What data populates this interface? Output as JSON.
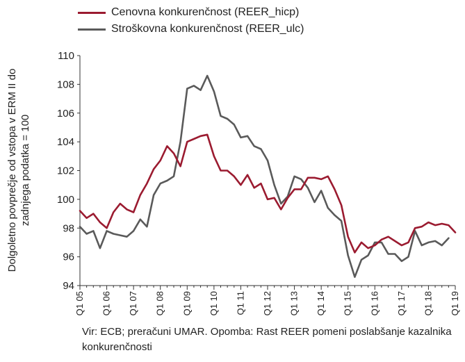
{
  "chart_data": {
    "type": "line",
    "ylabel": "Dolgoletno povprečje od vstopa v ERM II do zadnjega podatka = 100",
    "xlabel": "",
    "ylim": [
      94,
      110
    ],
    "yticks": [
      94,
      96,
      98,
      100,
      102,
      104,
      106,
      108,
      110
    ],
    "xticks": [
      "Q1 05",
      "Q1 06",
      "Q1 07",
      "Q1 08",
      "Q1 09",
      "Q1 10",
      "Q1 11",
      "Q1 12",
      "Q1 13",
      "Q1 14",
      "Q1 15",
      "Q1 16",
      "Q1 17",
      "Q1 18",
      "Q1 19"
    ],
    "grid": false,
    "legend_position": "top",
    "series": [
      {
        "name": "Cenovna konkurenčnost (REER_hicp)",
        "color": "#9b1b30",
        "values": [
          99.2,
          98.7,
          99.0,
          98.4,
          98.0,
          99.1,
          99.7,
          99.3,
          99.1,
          100.3,
          101.1,
          102.1,
          102.7,
          103.7,
          103.2,
          102.3,
          104.0,
          104.2,
          104.4,
          104.5,
          103.0,
          102.0,
          102.0,
          101.6,
          101.0,
          101.7,
          100.8,
          101.1,
          100.0,
          100.1,
          99.3,
          100.1,
          100.7,
          100.7,
          101.5,
          101.5,
          101.4,
          101.6,
          100.7,
          99.6,
          97.4,
          96.3,
          97.0,
          96.6,
          96.8,
          97.2,
          97.4,
          97.1,
          96.8,
          97.0,
          98.0,
          98.1,
          98.4,
          98.2,
          98.3,
          98.2,
          97.7
        ]
      },
      {
        "name": "Stroškovna konkurenčnost (REER_ulc)",
        "color": "#5a5a5a",
        "values": [
          98.1,
          97.6,
          97.8,
          96.6,
          97.8,
          97.6,
          97.5,
          97.4,
          97.8,
          98.6,
          98.1,
          100.3,
          101.1,
          101.3,
          101.6,
          104.0,
          107.7,
          107.9,
          107.6,
          108.6,
          107.5,
          105.8,
          105.6,
          105.2,
          104.3,
          104.4,
          103.7,
          103.5,
          102.7,
          101.0,
          99.7,
          100.2,
          101.6,
          101.4,
          100.8,
          99.8,
          100.6,
          99.4,
          98.9,
          98.5,
          96.1,
          94.6,
          95.8,
          96.1,
          97.0,
          97.0,
          96.2,
          96.2,
          95.7,
          96.0,
          97.8,
          96.8,
          97.0,
          97.1,
          96.8,
          97.3
        ]
      }
    ]
  },
  "legend": {
    "items": [
      {
        "label": "Cenovna konkurenčnost (REER_hicp)"
      },
      {
        "label": "Stroškovna konkurenčnost (REER_ulc)"
      }
    ]
  },
  "ylabel_text": "Dolgoletno povprečje od vstopa v ERM II do zadnjega podatka = 100",
  "source_note": "Vir: ECB; preračuni UMAR. Opomba: Rast REER pomeni poslabšanje kazalnika konkurenčnosti"
}
